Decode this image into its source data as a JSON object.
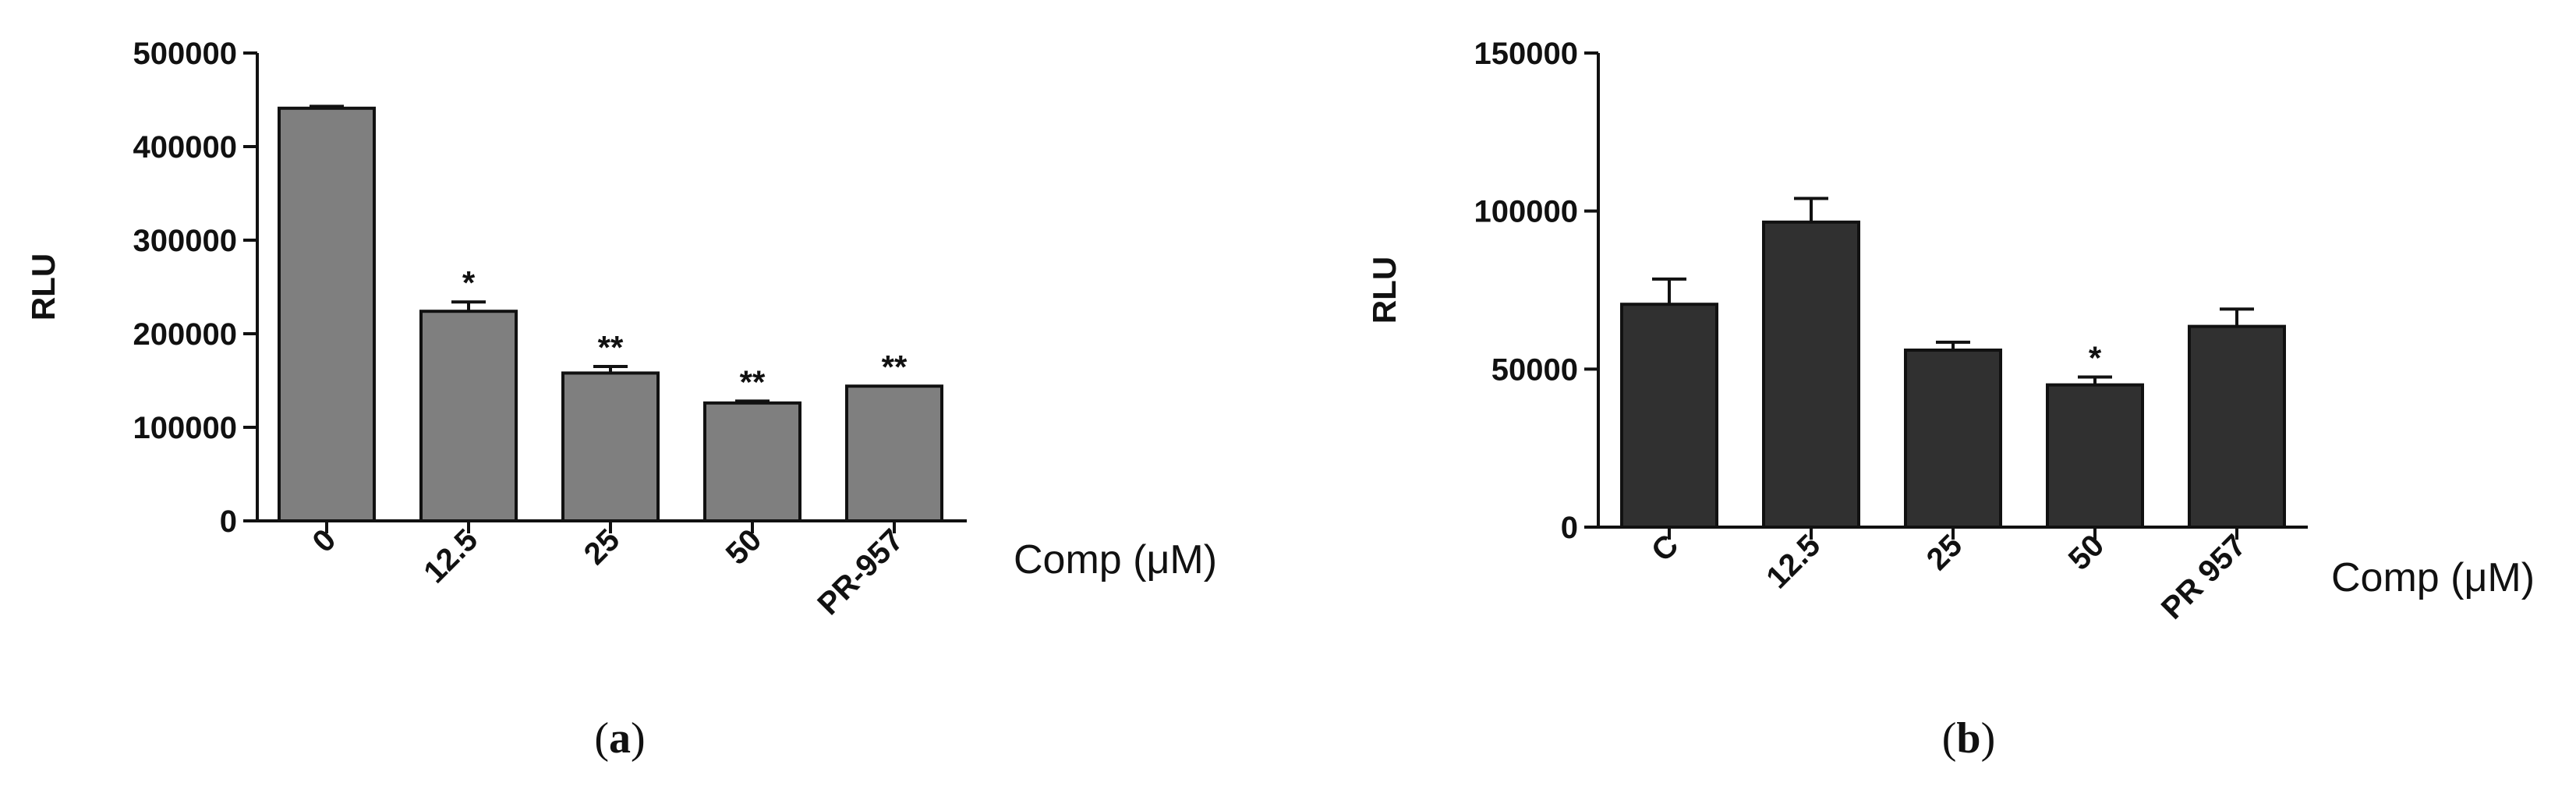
{
  "chart_data": [
    {
      "type": "bar",
      "panel_label": "a",
      "categories": [
        "0",
        "12.5",
        "25",
        "50",
        "PR-957"
      ],
      "values": [
        441000,
        224000,
        158000,
        126000,
        144000
      ],
      "errors": [
        2000,
        10000,
        7000,
        2000,
        0
      ],
      "significance": [
        "",
        "*",
        "**",
        "**",
        "**"
      ],
      "title": "",
      "xlabel": "Comp (μM)",
      "ylabel": "RLU",
      "ylim": [
        0,
        500000
      ],
      "yticks": [
        "0",
        "100000",
        "200000",
        "300000",
        "400000",
        "500000"
      ],
      "bar_color": "#7f7f7f",
      "grid": false
    },
    {
      "type": "bar",
      "panel_label": "b",
      "categories": [
        "C",
        "12.5",
        "25",
        "50",
        "PR 957"
      ],
      "values": [
        70500,
        96500,
        56000,
        45000,
        63500
      ],
      "errors": [
        8000,
        7500,
        2500,
        2500,
        5500
      ],
      "significance": [
        "",
        "",
        "",
        "*",
        ""
      ],
      "title": "",
      "xlabel": "Comp (μM)",
      "ylabel": "RLU",
      "ylim": [
        0,
        150000
      ],
      "yticks": [
        "0",
        "50000",
        "100000",
        "150000"
      ],
      "bar_color": "#303030",
      "grid": false
    }
  ]
}
